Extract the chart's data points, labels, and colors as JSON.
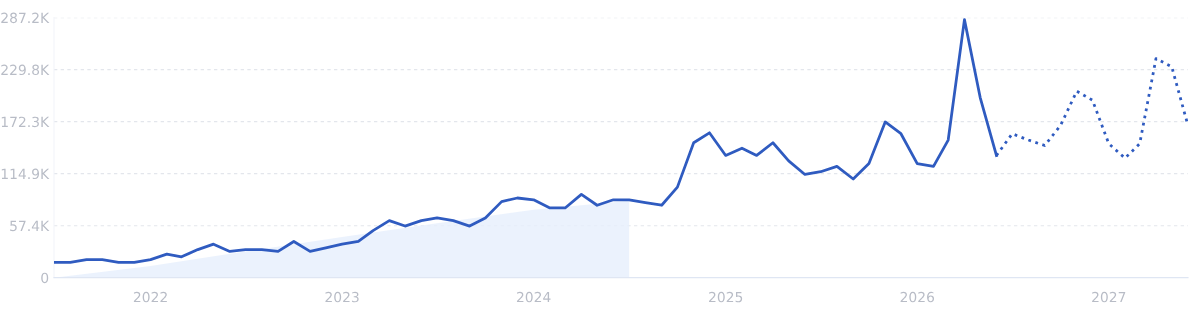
{
  "chart_data": {
    "type": "line",
    "x": [
      "2021-07",
      "2021-08",
      "2021-09",
      "2021-10",
      "2021-11",
      "2021-12",
      "2022-01",
      "2022-02",
      "2022-03",
      "2022-04",
      "2022-05",
      "2022-06",
      "2022-07",
      "2022-08",
      "2022-09",
      "2022-10",
      "2022-11",
      "2022-12",
      "2023-01",
      "2023-02",
      "2023-03",
      "2023-04",
      "2023-05",
      "2023-06",
      "2023-07",
      "2023-08",
      "2023-09",
      "2023-10",
      "2023-11",
      "2023-12",
      "2024-01",
      "2024-02",
      "2024-03",
      "2024-04",
      "2024-05",
      "2024-06",
      "2024-07",
      "2024-08",
      "2024-09",
      "2024-10",
      "2024-11",
      "2024-12",
      "2025-01",
      "2025-02",
      "2025-03",
      "2025-04",
      "2025-05",
      "2025-06",
      "2025-07",
      "2025-08",
      "2025-09",
      "2025-10",
      "2025-11",
      "2025-12",
      "2026-01",
      "2026-02",
      "2026-03",
      "2026-04",
      "2026-05",
      "2026-06"
    ],
    "series": [
      {
        "type": "area",
        "color": "#e6effc",
        "x": [
          "2021-07",
          "2022-01",
          "2022-07",
          "2023-01",
          "2023-07",
          "2024-01",
          "2024-07"
        ],
        "values": [
          0,
          13000,
          29000,
          45000,
          60000,
          75000,
          85000
        ]
      },
      {
        "color": "#2f5bc0",
        "line_style": "solid",
        "values": [
          17000,
          17000,
          20000,
          20000,
          17000,
          17000,
          20000,
          26000,
          23000,
          31000,
          37000,
          29000,
          31000,
          31000,
          29000,
          40000,
          29000,
          33000,
          37000,
          40000,
          52000,
          63000,
          57000,
          63000,
          66000,
          63000,
          57000,
          66000,
          84000,
          88000,
          86000,
          77000,
          77000,
          92000,
          80000,
          86000,
          86000,
          83000,
          80000,
          100000,
          149000,
          160000,
          135000,
          143000,
          135000,
          149000,
          129000,
          114000,
          117000,
          123000,
          109000,
          126000,
          172000,
          159000,
          126000,
          123000,
          152000,
          285000,
          199000,
          135000
        ]
      },
      {
        "color": "#2f5bc0",
        "line_style": "dotted",
        "x": [
          "2026-06",
          "2026-07",
          "2026-08",
          "2026-09",
          "2026-10",
          "2026-11",
          "2026-12",
          "2027-01",
          "2027-02",
          "2027-03",
          "2027-04",
          "2027-05",
          "2027-06"
        ],
        "values": [
          135000,
          159000,
          152000,
          146000,
          168000,
          206000,
          196000,
          148000,
          132000,
          148000,
          242000,
          233000,
          168000
        ]
      }
    ],
    "xlim": [
      "2021-07",
      "2027-06"
    ],
    "xticks": [
      {
        "value": "2022",
        "label": "2022"
      },
      {
        "value": "2023",
        "label": "2023"
      },
      {
        "value": "2024",
        "label": "2024"
      },
      {
        "value": "2025",
        "label": "2025"
      },
      {
        "value": "2026",
        "label": "2026"
      },
      {
        "value": "2027",
        "label": "2027"
      }
    ],
    "ylim": [
      0,
      287200
    ],
    "yticks": [
      0,
      {
        "value": 57400,
        "label": "57.4K"
      },
      {
        "value": 114900,
        "label": "114.9K"
      },
      {
        "value": 172300,
        "label": "172.3K"
      },
      {
        "value": 229800,
        "label": "229.8K"
      },
      {
        "value": 287200,
        "label": "287.2K"
      }
    ],
    "grid": "y",
    "marker": "none"
  }
}
